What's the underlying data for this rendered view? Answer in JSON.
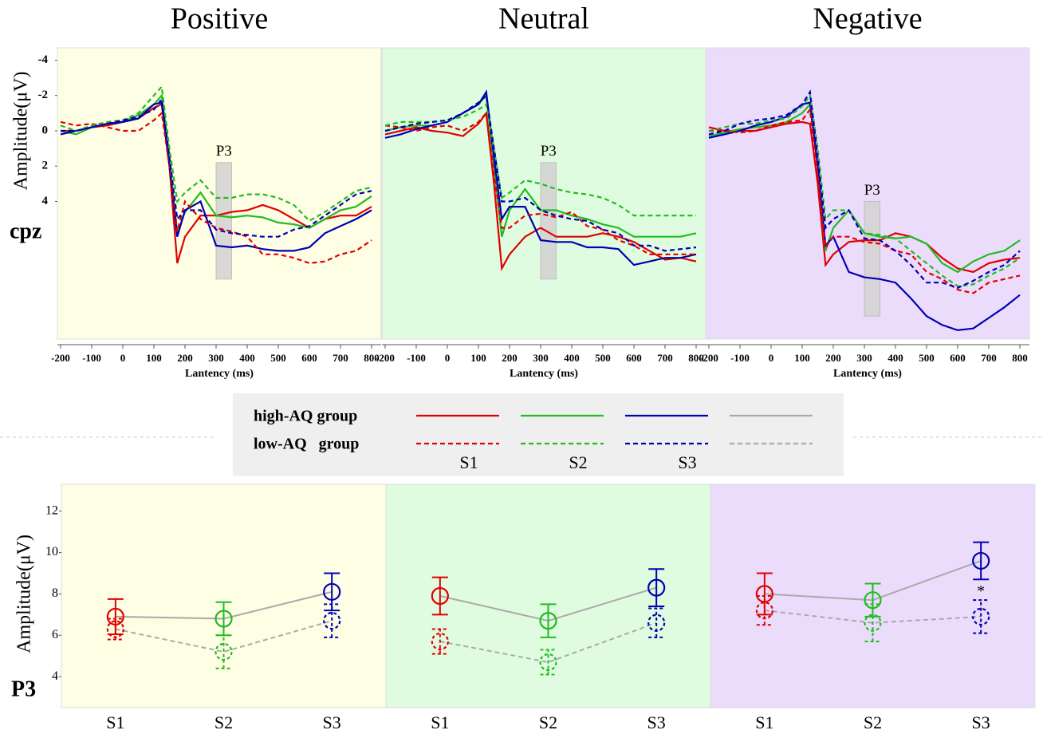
{
  "chart_data": [
    {
      "type": "line",
      "title": "Positive",
      "background": "#fefee4",
      "row_label": "cpz",
      "y_label": "Amplitude(μV)",
      "x_label": "Lantency (ms)",
      "x": [
        -200,
        -150,
        -100,
        -50,
        0,
        50,
        100,
        125,
        150,
        175,
        200,
        250,
        300,
        350,
        400,
        450,
        500,
        550,
        600,
        650,
        700,
        750,
        800
      ],
      "xlim": [
        -200,
        800
      ],
      "xticks": [
        -200,
        -100,
        0,
        100,
        200,
        300,
        400,
        500,
        600,
        700,
        800
      ],
      "ylim": [
        -4.7,
        11.8
      ],
      "y_inverted": true,
      "yticks": [
        -4,
        -2,
        0,
        2,
        4
      ],
      "window": {
        "label": "P3",
        "x": [
          300,
          350
        ],
        "y": [
          1.8,
          8.4
        ]
      },
      "series": [
        {
          "color": "#e00000",
          "dash": false,
          "values": [
            0,
            0,
            -0.2,
            -0.3,
            -0.5,
            -0.7,
            -1.3,
            -1.5,
            2,
            7.5,
            6,
            4.8,
            4.8,
            4.6,
            4.5,
            4.2,
            4.5,
            5,
            5.5,
            5,
            4.8,
            4.8,
            4.3
          ]
        },
        {
          "color": "#22bb22",
          "dash": false,
          "values": [
            0,
            0.2,
            -0.2,
            -0.4,
            -0.5,
            -0.9,
            -1.5,
            -2,
            1.5,
            5.8,
            4.6,
            3.5,
            4.8,
            4.9,
            4.8,
            4.9,
            5.2,
            5.3,
            5.5,
            5,
            4.5,
            4.3,
            3.7
          ]
        },
        {
          "color": "#0000b4",
          "dash": false,
          "values": [
            0.2,
            0,
            -0.2,
            -0.4,
            -0.5,
            -0.7,
            -1.5,
            -1.6,
            2,
            6,
            4.5,
            4,
            6.5,
            6.6,
            6.5,
            6.7,
            6.8,
            6.8,
            6.6,
            5.8,
            5.4,
            5,
            4.5
          ]
        },
        {
          "color": "#e00000",
          "dash": true,
          "values": [
            -0.5,
            -0.3,
            -0.4,
            -0.2,
            0,
            0,
            -0.6,
            -1,
            2,
            5.7,
            4,
            5,
            5.5,
            5.7,
            6,
            7,
            7,
            7.2,
            7.5,
            7.4,
            7.0,
            6.8,
            6.2
          ]
        },
        {
          "color": "#22bb22",
          "dash": true,
          "values": [
            -0.3,
            0,
            -0.3,
            -0.5,
            -0.6,
            -1,
            -2,
            -2.5,
            1,
            4,
            3.5,
            2.8,
            3.8,
            3.8,
            3.6,
            3.6,
            3.8,
            4.2,
            5.1,
            4.6,
            4,
            3.4,
            3.2
          ]
        },
        {
          "color": "#0000b4",
          "dash": true,
          "values": [
            0,
            0,
            -0.2,
            -0.4,
            -0.6,
            -0.8,
            -1.2,
            -1.8,
            1.5,
            5,
            4.5,
            4.5,
            5.6,
            5.8,
            5.9,
            6,
            6,
            5.6,
            5.4,
            4.8,
            4.2,
            3.6,
            3.4
          ]
        }
      ]
    },
    {
      "type": "line",
      "title": "Neutral",
      "background": "#e0fce0",
      "x_label": "Lantency (ms)",
      "x": [
        -200,
        -150,
        -100,
        -50,
        0,
        50,
        100,
        125,
        150,
        175,
        200,
        250,
        300,
        350,
        400,
        450,
        500,
        550,
        600,
        650,
        700,
        750,
        800
      ],
      "xlim": [
        -200,
        800
      ],
      "xticks": [
        -200,
        -100,
        0,
        100,
        200,
        300,
        400,
        500,
        600,
        700,
        800
      ],
      "ylim": [
        -4.7,
        11.8
      ],
      "y_inverted": true,
      "window": {
        "label": "P3",
        "x": [
          300,
          350
        ],
        "y": [
          1.8,
          8.4
        ]
      },
      "series": [
        {
          "color": "#e00000",
          "dash": false,
          "values": [
            0.2,
            0,
            -0.2,
            0,
            0.1,
            0.3,
            -0.4,
            -1,
            3,
            7.8,
            7,
            6,
            5.5,
            6,
            6,
            6,
            5.8,
            6,
            6.3,
            6.8,
            7.3,
            7.2,
            7.4
          ]
        },
        {
          "color": "#22bb22",
          "dash": false,
          "values": [
            0,
            -0.2,
            -0.3,
            -0.3,
            -0.5,
            -1,
            -1.5,
            -2,
            2,
            6,
            4.5,
            3.3,
            4.5,
            4.5,
            4.8,
            5,
            5.3,
            5.5,
            6,
            6,
            6,
            6,
            5.8
          ]
        },
        {
          "color": "#0000b4",
          "dash": false,
          "values": [
            0.4,
            0.2,
            -0.1,
            -0.3,
            -0.5,
            -1,
            -1.5,
            -2.2,
            1.5,
            5,
            4.3,
            4.3,
            6.2,
            6.3,
            6.3,
            6.6,
            6.6,
            6.7,
            7.6,
            7.4,
            7.2,
            7.2,
            7
          ]
        },
        {
          "color": "#e00000",
          "dash": true,
          "values": [
            -0.3,
            -0.2,
            0,
            -0.2,
            -0.3,
            0,
            -0.5,
            -1,
            2.5,
            5.5,
            5.5,
            4.8,
            4.7,
            4.9,
            4.6,
            5.4,
            5.6,
            6.2,
            6.5,
            7,
            7,
            7,
            7
          ]
        },
        {
          "color": "#22bb22",
          "dash": true,
          "values": [
            -0.3,
            -0.5,
            -0.5,
            -0.5,
            -0.6,
            -0.8,
            -1.2,
            -1.5,
            1,
            3.8,
            3.5,
            2.8,
            3,
            3.3,
            3.5,
            3.6,
            3.8,
            4.2,
            4.8,
            4.8,
            4.8,
            4.8,
            4.8
          ]
        },
        {
          "color": "#0000b4",
          "dash": true,
          "values": [
            0,
            -0.2,
            -0.4,
            -0.5,
            -0.6,
            -1,
            -1.6,
            -2,
            1,
            4,
            4,
            3.8,
            4.5,
            4.8,
            5,
            5.1,
            5.6,
            5.8,
            6.5,
            6.5,
            6.8,
            6.7,
            6.6
          ]
        }
      ]
    },
    {
      "type": "line",
      "title": "Negative",
      "background": "#ecdcfc",
      "x_label": "Lantency (ms)",
      "x": [
        -200,
        -150,
        -100,
        -50,
        0,
        50,
        100,
        125,
        150,
        175,
        200,
        250,
        300,
        350,
        400,
        450,
        500,
        550,
        600,
        650,
        700,
        750,
        800
      ],
      "xlim": [
        -200,
        800
      ],
      "xticks": [
        -200,
        -100,
        0,
        100,
        200,
        300,
        400,
        500,
        600,
        700,
        800
      ],
      "ylim": [
        -4.7,
        11.8
      ],
      "y_inverted": true,
      "window": {
        "label": "P3",
        "x": [
          300,
          350
        ],
        "y": [
          4,
          10.5
        ]
      },
      "series": [
        {
          "color": "#e00000",
          "dash": false,
          "values": [
            -0.2,
            0,
            0,
            0,
            -0.2,
            -0.4,
            -0.5,
            -0.4,
            3,
            7.6,
            7,
            6.3,
            6.2,
            6.2,
            5.8,
            6,
            6.4,
            7.2,
            7.8,
            8,
            7.5,
            7.3,
            7.2
          ]
        },
        {
          "color": "#22bb22",
          "dash": false,
          "values": [
            0.3,
            0.1,
            -0.1,
            -0.2,
            -0.3,
            -0.5,
            -1,
            -1.5,
            2,
            6.8,
            5.5,
            4.5,
            5.8,
            6,
            6.1,
            6,
            6.4,
            7.5,
            8,
            7.4,
            7,
            6.8,
            6.2
          ]
        },
        {
          "color": "#0000b4",
          "dash": false,
          "values": [
            0.4,
            0.2,
            0,
            -0.3,
            -0.5,
            -0.8,
            -1.5,
            -1.6,
            2,
            6.5,
            6,
            8,
            8.3,
            8.4,
            8.6,
            9.5,
            10.5,
            11,
            11.3,
            11.2,
            10.6,
            10,
            9.3
          ]
        },
        {
          "color": "#e00000",
          "dash": true,
          "values": [
            0,
            0,
            0.1,
            0,
            -0.3,
            -0.5,
            -0.6,
            -1.2,
            2.5,
            6.6,
            6,
            6,
            6.3,
            6.4,
            6.8,
            7,
            8,
            8.4,
            9,
            9.2,
            8.6,
            8.4,
            8.2
          ]
        },
        {
          "color": "#22bb22",
          "dash": true,
          "values": [
            0,
            -0.2,
            -0.4,
            -0.4,
            -0.6,
            -0.7,
            -1.4,
            -2,
            1,
            5,
            4.5,
            4.5,
            5.8,
            5.9,
            6.1,
            6.8,
            7.5,
            8.2,
            8.8,
            8.7,
            8.2,
            7.8,
            7.2
          ]
        },
        {
          "color": "#0000b4",
          "dash": true,
          "values": [
            0.2,
            0,
            -0.4,
            -0.6,
            -0.7,
            -0.9,
            -1.5,
            -2.2,
            1.5,
            5.5,
            5,
            4.5,
            6.1,
            6.2,
            6.8,
            7.6,
            8.6,
            8.6,
            8.9,
            8.5,
            8,
            7.6,
            6.8
          ]
        }
      ]
    },
    {
      "type": "errorbar",
      "background": "#fefee4",
      "row_label": "P3",
      "y_label": "Amplitude(μV)",
      "categories": [
        "S1",
        "S2",
        "S3"
      ],
      "category_colors": [
        "#e00000",
        "#22bb22",
        "#0000b4"
      ],
      "mean_color": "#aaaaaa",
      "ylim": [
        2.5,
        13.3
      ],
      "yticks": [
        4,
        6,
        8,
        10,
        12
      ],
      "series": [
        {
          "dash": false,
          "values": [
            6.9,
            6.8,
            8.1
          ],
          "errors": [
            0.85,
            0.8,
            0.9
          ]
        },
        {
          "dash": true,
          "values": [
            6.3,
            5.2,
            6.7
          ],
          "errors": [
            0.5,
            0.8,
            0.8
          ]
        }
      ]
    },
    {
      "type": "errorbar",
      "background": "#e0fce0",
      "categories": [
        "S1",
        "S2",
        "S3"
      ],
      "category_colors": [
        "#e00000",
        "#22bb22",
        "#0000b4"
      ],
      "mean_color": "#aaaaaa",
      "ylim": [
        2.5,
        13.3
      ],
      "series": [
        {
          "dash": false,
          "values": [
            7.9,
            6.7,
            8.3
          ],
          "errors": [
            0.9,
            0.8,
            0.9
          ]
        },
        {
          "dash": true,
          "values": [
            5.7,
            4.7,
            6.6
          ],
          "errors": [
            0.6,
            0.6,
            0.7
          ]
        }
      ]
    },
    {
      "type": "errorbar",
      "background": "#ecdcfc",
      "categories": [
        "S1",
        "S2",
        "S3"
      ],
      "category_colors": [
        "#e00000",
        "#22bb22",
        "#0000b4"
      ],
      "mean_color": "#aaaaaa",
      "ylim": [
        2.5,
        13.3
      ],
      "series": [
        {
          "dash": false,
          "values": [
            8.0,
            7.7,
            9.6
          ],
          "errors": [
            1.0,
            0.8,
            0.9
          ]
        },
        {
          "dash": true,
          "values": [
            7.2,
            6.6,
            6.9
          ],
          "errors": [
            0.7,
            0.9,
            0.8
          ]
        }
      ],
      "annotations": [
        {
          "text": "*",
          "series": 1,
          "index": 2
        }
      ]
    }
  ],
  "legend": {
    "rows": [
      {
        "label": "high-AQ group",
        "dash": false
      },
      {
        "label": "low-AQ   group",
        "dash": true
      }
    ],
    "conditions": [
      "S1",
      "S2",
      "S3"
    ],
    "colors": [
      "#e00000",
      "#22bb22",
      "#0000b4",
      "#aaaaaa"
    ]
  }
}
